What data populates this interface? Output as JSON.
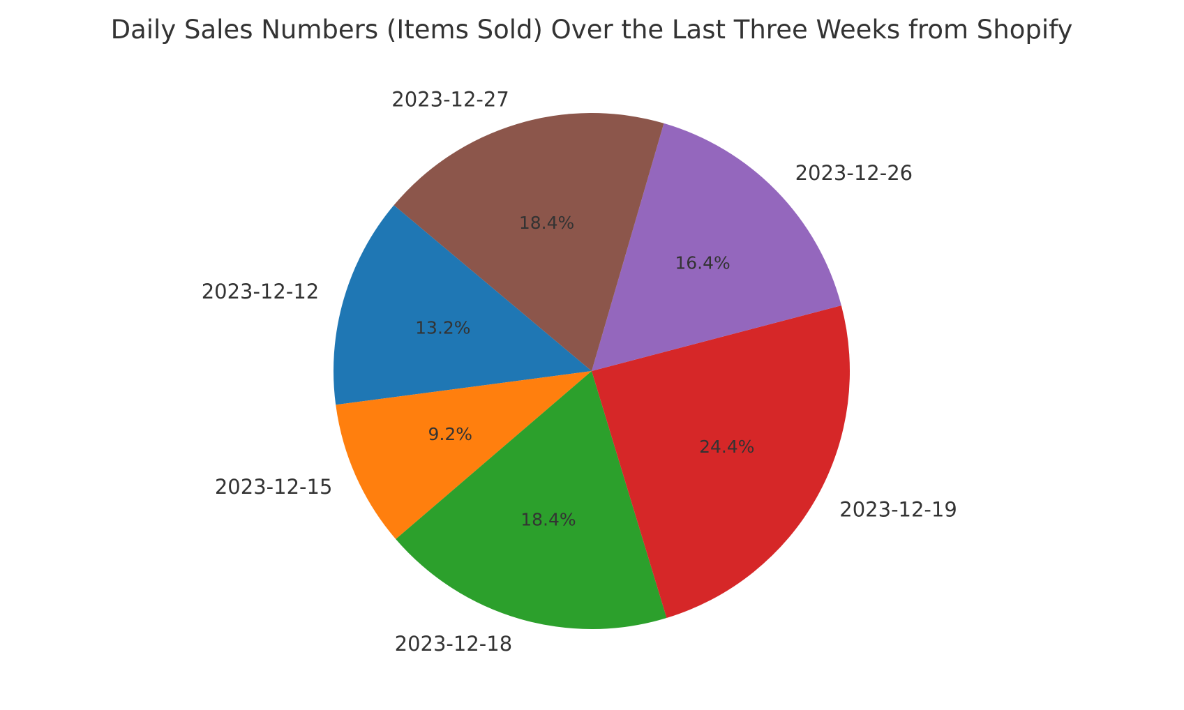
{
  "chart_data": {
    "type": "pie",
    "title": "Daily Sales Numbers (Items Sold) Over the Last Three Weeks from Shopify",
    "labels": [
      "2023-12-12",
      "2023-12-15",
      "2023-12-18",
      "2023-12-19",
      "2023-12-26",
      "2023-12-27"
    ],
    "values": [
      13.2,
      9.2,
      18.4,
      24.4,
      16.4,
      18.4
    ],
    "pct_labels": [
      "13.2%",
      "9.2%",
      "18.4%",
      "24.4%",
      "16.4%",
      "18.4%"
    ],
    "colors": [
      "#1f77b4",
      "#ff7f0e",
      "#2ca02c",
      "#d62728",
      "#9467bd",
      "#8c564b"
    ],
    "start_angle_deg": 140,
    "direction": "counterclockwise",
    "legend": "none"
  }
}
